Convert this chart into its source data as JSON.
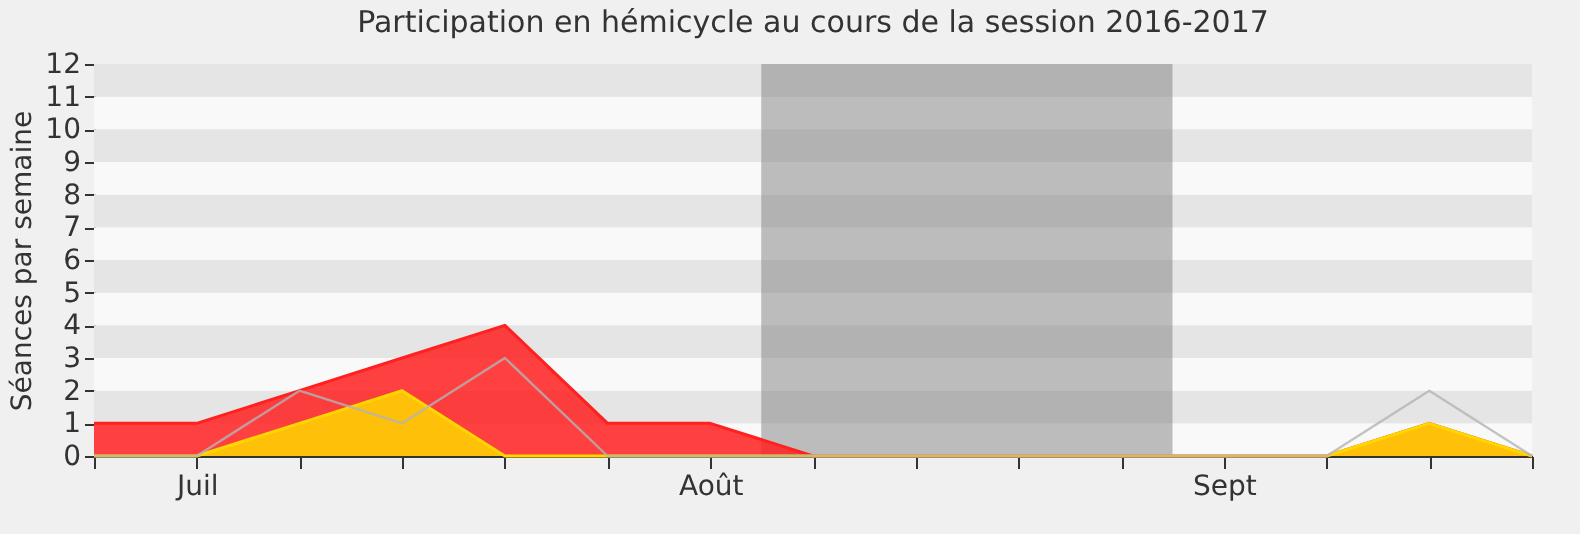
{
  "chart_data": {
    "type": "area",
    "title": "Participation en hémicycle au cours de la session 2016-2017",
    "ylabel": "Séances par semaine",
    "categories": [
      null,
      "Juil",
      null,
      null,
      null,
      null,
      "Août",
      null,
      null,
      null,
      null,
      "Sept",
      null,
      null,
      null
    ],
    "series": [
      {
        "type": "line",
        "color": "#b4b4b4",
        "values": [
          0,
          0,
          2,
          1,
          3,
          0,
          0,
          0,
          0,
          0,
          0,
          0,
          0,
          2,
          0
        ]
      },
      {
        "color": "#ff2020",
        "values": [
          1,
          1,
          2,
          3,
          4,
          1,
          1,
          0,
          0,
          0,
          0,
          0,
          0,
          1,
          0
        ]
      },
      {
        "color": "#ffd700",
        "values": [
          0,
          0,
          1,
          2,
          0,
          0,
          0,
          0,
          0,
          0,
          0,
          0,
          0,
          1,
          0
        ]
      }
    ],
    "ylim": [
      0,
      12
    ],
    "yticks": [
      0,
      1,
      2,
      3,
      4,
      5,
      6,
      7,
      8,
      9,
      10,
      11,
      12
    ],
    "marker": "none",
    "line_style": "solid"
  }
}
